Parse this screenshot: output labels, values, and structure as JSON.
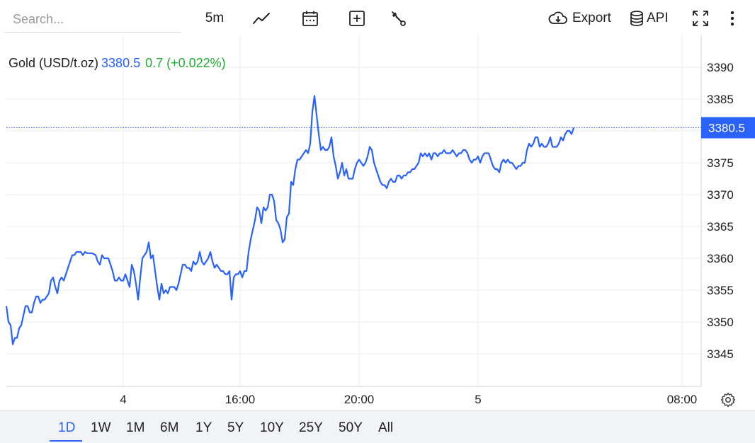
{
  "toolbar": {
    "search_placeholder": "Search...",
    "interval": "5m",
    "export_label": "Export",
    "api_label": "API",
    "icons": [
      "line-chart-icon",
      "calendar-icon",
      "add-plus-icon",
      "wrench-icon",
      "cloud-download-icon",
      "database-icon",
      "fullscreen-icon",
      "more-vertical-icon"
    ]
  },
  "legend": {
    "symbol": "Gold (USD/t.oz)",
    "price": "3380.5",
    "change": "0.7 (+0.022%)"
  },
  "price_tag": "3380.5",
  "colors": {
    "line": "#2962ff",
    "up": "#22ab34",
    "grid": "#eeeeee",
    "tag": "#2962ff"
  },
  "chart_data": {
    "type": "line",
    "title": "Gold (USD/t.oz)",
    "interval": "5m",
    "series": [
      {
        "name": "Gold (USD/t.oz)",
        "values": [
          3352.5,
          3350,
          3349.5,
          3346.5,
          3347.5,
          3347.5,
          3349,
          3349.5,
          3351,
          3352.5,
          3352.5,
          3351.5,
          3351.5,
          3353,
          3354,
          3354,
          3353,
          3353.5,
          3353.5,
          3354,
          3354.5,
          3356.5,
          3357,
          3355.5,
          3354.5,
          3356.5,
          3357,
          3356.5,
          3357.5,
          3358.5,
          3359.5,
          3360.5,
          3360.5,
          3361,
          3361,
          3361,
          3360.5,
          3361,
          3360.8,
          3360.8,
          3360.8,
          3360.7,
          3360.5,
          3359.5,
          3359,
          3360.5,
          3360,
          3360,
          3360,
          3359,
          3358,
          3356.5,
          3356.5,
          3357,
          3356.5,
          3356.5,
          3357.5,
          3356.5,
          3355.5,
          3359,
          3358,
          3356,
          3353.5,
          3357,
          3360,
          3360.5,
          3361,
          3362.5,
          3360,
          3360.5,
          3358,
          3355.5,
          3353.5,
          3356,
          3354.5,
          3355,
          3354.5,
          3355.5,
          3355.5,
          3355.5,
          3355,
          3356,
          3357.5,
          3359,
          3359,
          3358.5,
          3358.5,
          3358,
          3359.5,
          3359,
          3359.5,
          3361,
          3359.5,
          3359,
          3359.5,
          3360,
          3361,
          3359.5,
          3358.5,
          3359,
          3358.5,
          3358,
          3358,
          3357.5,
          3357.5,
          3358,
          3353.5,
          3357,
          3357.5,
          3357.5,
          3358,
          3357,
          3358,
          3358,
          3361,
          3363,
          3364.5,
          3366,
          3368,
          3367.5,
          3365.5,
          3368,
          3367.5,
          3368,
          3370,
          3370,
          3369,
          3366,
          3365.5,
          3364.5,
          3362.5,
          3363,
          3366.5,
          3367,
          3372,
          3371.5,
          3374,
          3375.5,
          3375.5,
          3376,
          3376.5,
          3377,
          3376.5,
          3378,
          3383,
          3385.5,
          3382.5,
          3379.5,
          3377,
          3377.5,
          3377,
          3377,
          3377.5,
          3379,
          3376,
          3374.5,
          3372.5,
          3373.5,
          3375,
          3373,
          3374,
          3372.5,
          3372.5,
          3372.5,
          3374,
          3375,
          3375.5,
          3375,
          3374.5,
          3375,
          3376,
          3377.5,
          3377,
          3375,
          3374,
          3373,
          3372,
          3371.5,
          3371.5,
          3371,
          3372,
          3372.5,
          3372,
          3372,
          3373,
          3373,
          3372.5,
          3373,
          3373,
          3373.5,
          3373.5,
          3374,
          3374,
          3374.5,
          3375,
          3376.5,
          3376,
          3376.5,
          3376,
          3376.5,
          3375.5,
          3376.5,
          3376.5,
          3376,
          3376.5,
          3376.5,
          3377,
          3376.5,
          3376.5,
          3376.5,
          3377,
          3376.5,
          3376,
          3376.5,
          3376.5,
          3377,
          3377,
          3376.5,
          3375.5,
          3375,
          3375.5,
          3375.5,
          3376,
          3375,
          3376,
          3376.5,
          3376.5,
          3376.5,
          3375.5,
          3374.5,
          3374,
          3374,
          3373.5,
          3375,
          3375.5,
          3375,
          3375.5,
          3375,
          3375,
          3374.5,
          3374,
          3374.5,
          3374.5,
          3375,
          3375,
          3377,
          3378,
          3377.5,
          3378,
          3379,
          3379,
          3377.5,
          3378,
          3377.5,
          3377.5,
          3378,
          3379,
          3377.5,
          3377.5,
          3377.5,
          3378,
          3379,
          3378.5,
          3379.5,
          3380,
          3380,
          3379.5,
          3380.5
        ]
      }
    ],
    "x_ticks": [
      {
        "label": "4",
        "i": 55
      },
      {
        "label": "16:00",
        "i": 110
      },
      {
        "label": "20:00",
        "i": 166
      },
      {
        "label": "5",
        "i": 222
      },
      {
        "label": "08:00",
        "i": 318
      }
    ],
    "y_ticks": [
      3345,
      3350,
      3355,
      3360,
      3365,
      3370,
      3375,
      3380,
      3385,
      3390
    ],
    "ylim": [
      3340.5,
      3395
    ],
    "current_value": 3380.5,
    "grid": true,
    "y_axis_position": "right"
  },
  "range_buttons": [
    "1D",
    "1W",
    "1M",
    "6M",
    "1Y",
    "5Y",
    "10Y",
    "25Y",
    "50Y",
    "All"
  ],
  "active_range": "1D"
}
